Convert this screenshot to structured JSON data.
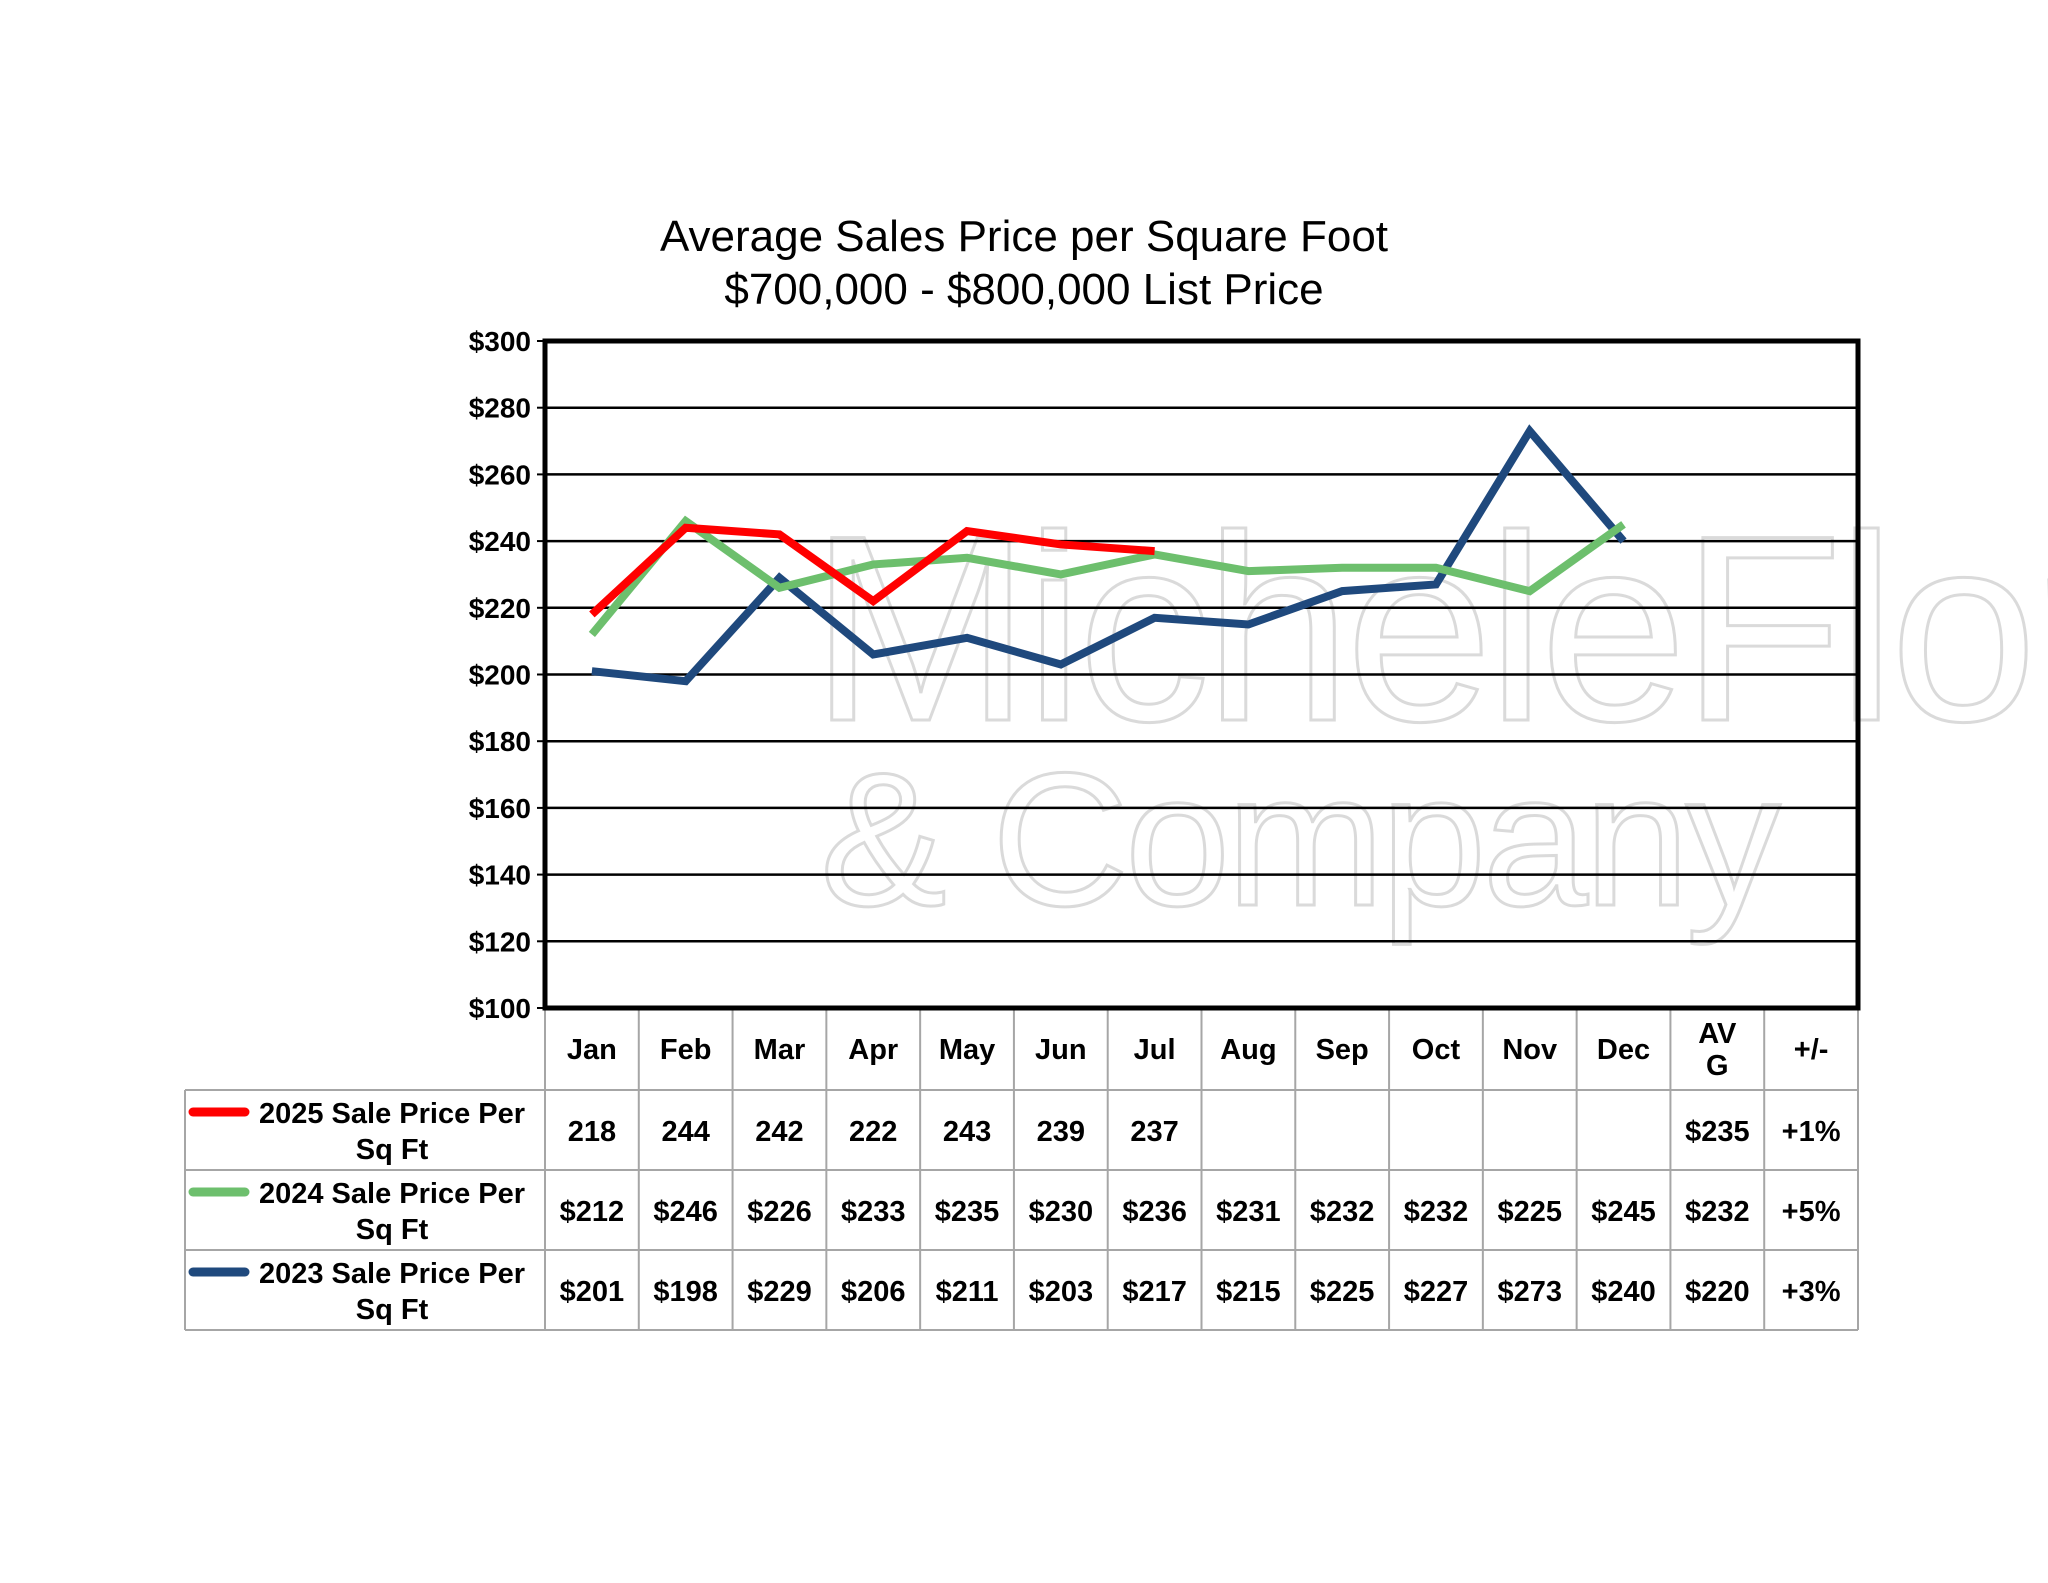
{
  "chart_data": {
    "type": "line",
    "title": "Average Sales Price per Square Foot",
    "subtitle": "$700,000 - $800,000 List Price",
    "categories": [
      "Jan",
      "Feb",
      "Mar",
      "Apr",
      "May",
      "Jun",
      "Jul",
      "Aug",
      "Sep",
      "Oct",
      "Nov",
      "Dec"
    ],
    "ylim": [
      100,
      300
    ],
    "ytick_step": 20,
    "ytick_labels": [
      "$100",
      "$120",
      "$140",
      "$160",
      "$180",
      "$200",
      "$220",
      "$240",
      "$260",
      "$280",
      "$300"
    ],
    "grid": true,
    "legend_position": "bottom (data table)",
    "series": [
      {
        "name": "2025 Sale Price Per Sq Ft",
        "color": "#ff0000",
        "values": [
          218,
          244,
          242,
          222,
          243,
          239,
          237,
          null,
          null,
          null,
          null,
          null
        ],
        "table_values": [
          "218",
          "244",
          "242",
          "222",
          "243",
          "239",
          "237",
          "",
          "",
          "",
          "",
          ""
        ],
        "avg": "$235",
        "change": "+1%"
      },
      {
        "name": "2024 Sale Price Per Sq Ft",
        "color": "#6dbf6d",
        "values": [
          212,
          246,
          226,
          233,
          235,
          230,
          236,
          231,
          232,
          232,
          225,
          245
        ],
        "table_values": [
          "$212",
          "$246",
          "$226",
          "$233",
          "$235",
          "$230",
          "$236",
          "$231",
          "$232",
          "$232",
          "$225",
          "$245"
        ],
        "avg": "$232",
        "change": "+5%"
      },
      {
        "name": "2023 Sale Price Per Sq Ft",
        "color": "#1f497d",
        "values": [
          201,
          198,
          229,
          206,
          211,
          203,
          217,
          215,
          225,
          227,
          273,
          240
        ],
        "table_values": [
          "$201",
          "$198",
          "$229",
          "$206",
          "$211",
          "$203",
          "$217",
          "$215",
          "$225",
          "$227",
          "$273",
          "$240"
        ],
        "avg": "$220",
        "change": "+3%"
      }
    ],
    "table_headers": {
      "avg": "AVG",
      "change": "+/-"
    }
  },
  "watermark": {
    "line1": "MicheleFlory",
    "line2": "& Company"
  }
}
